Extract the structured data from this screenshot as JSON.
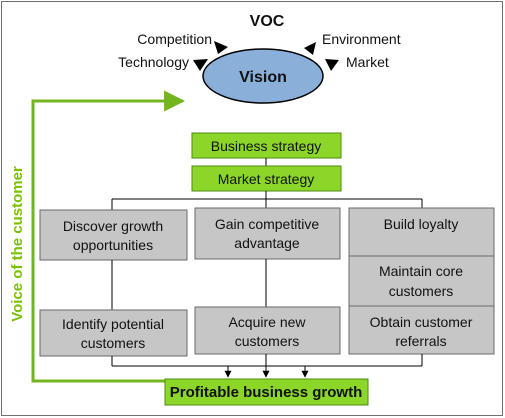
{
  "voc": {
    "title": "VOC",
    "vision": "Vision",
    "forces": {
      "competition": "Competition",
      "technology": "Technology",
      "environment": "Environment",
      "market": "Market"
    }
  },
  "side_label": "Voice of the customer",
  "strategy": {
    "business": "Business strategy",
    "market": "Market strategy"
  },
  "columns": {
    "left": {
      "top_line1": "Discover growth",
      "top_line2": "opportunities",
      "bottom_line1": "Identify potential",
      "bottom_line2": "customers"
    },
    "middle": {
      "top_line1": "Gain competitive",
      "top_line2": "advantage",
      "bottom_line1": "Acquire new",
      "bottom_line2": "customers"
    },
    "right": {
      "top": "Build loyalty",
      "mid_line1": "Maintain core",
      "mid_line2": "customers",
      "bottom_line1": "Obtain customer",
      "bottom_line2": "referrals"
    }
  },
  "outcome": "Profitable business growth",
  "colors": {
    "green_fill": "#8cd62a",
    "green_line": "#74b41c",
    "gray_fill": "#c6c6c6",
    "vision_fill": "#8ab0da",
    "side_label": "#7ac100"
  }
}
